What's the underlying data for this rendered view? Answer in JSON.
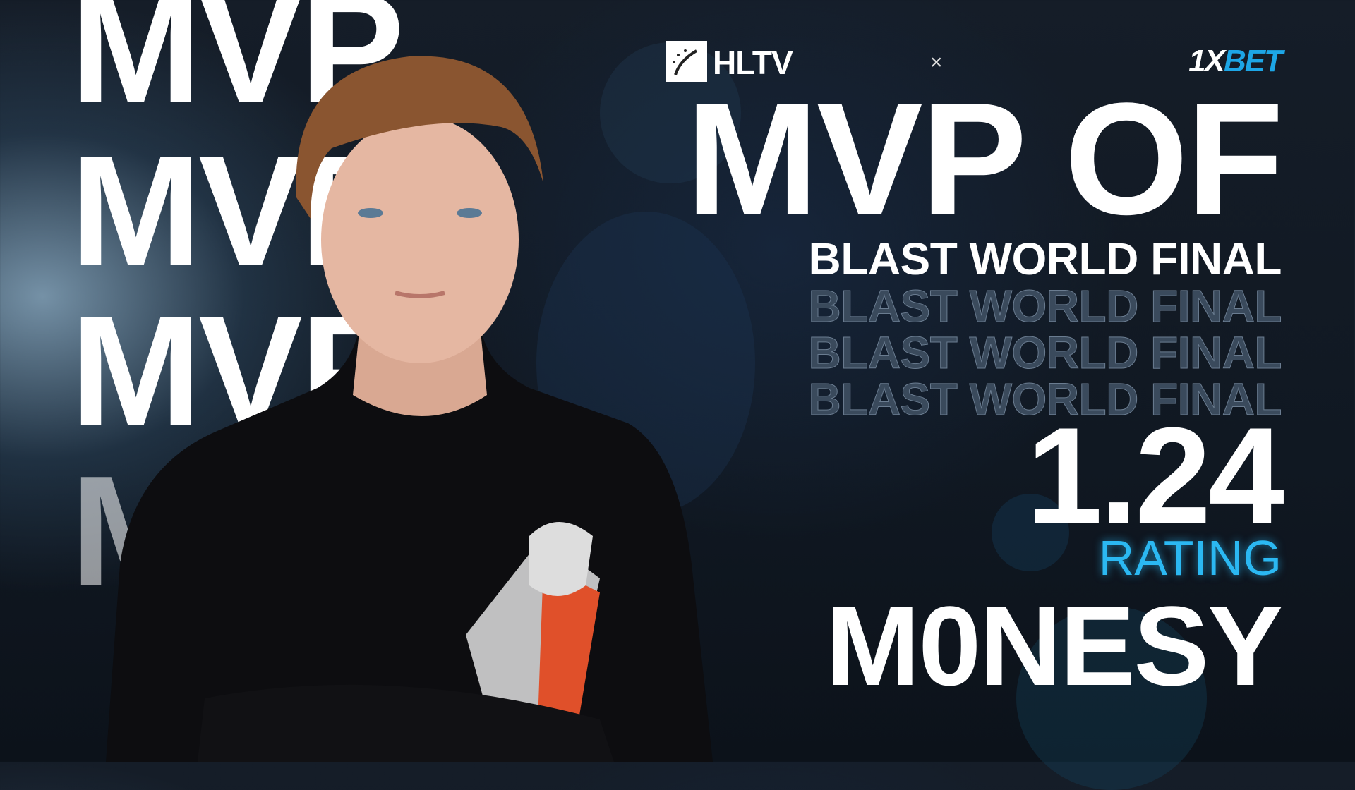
{
  "background_words": [
    "MVP",
    "MVP",
    "MVP",
    "MVP"
  ],
  "branding": {
    "hltv": "HLTV",
    "separator": "×",
    "sponsor_prefix": "1X",
    "sponsor_suffix": "BET"
  },
  "headline": "MVP OF",
  "event": "BLAST WORLD FINAL",
  "event_echo": [
    "BLAST WORLD FINAL",
    "BLAST WORLD FINAL",
    "BLAST WORLD FINAL"
  ],
  "stat": {
    "value": "1.24",
    "label": "RATING"
  },
  "player_name": "M0NESY",
  "colors": {
    "accent": "#2bb8f2",
    "background": "#111a25",
    "sponsor_blue": "#1da6e6"
  }
}
